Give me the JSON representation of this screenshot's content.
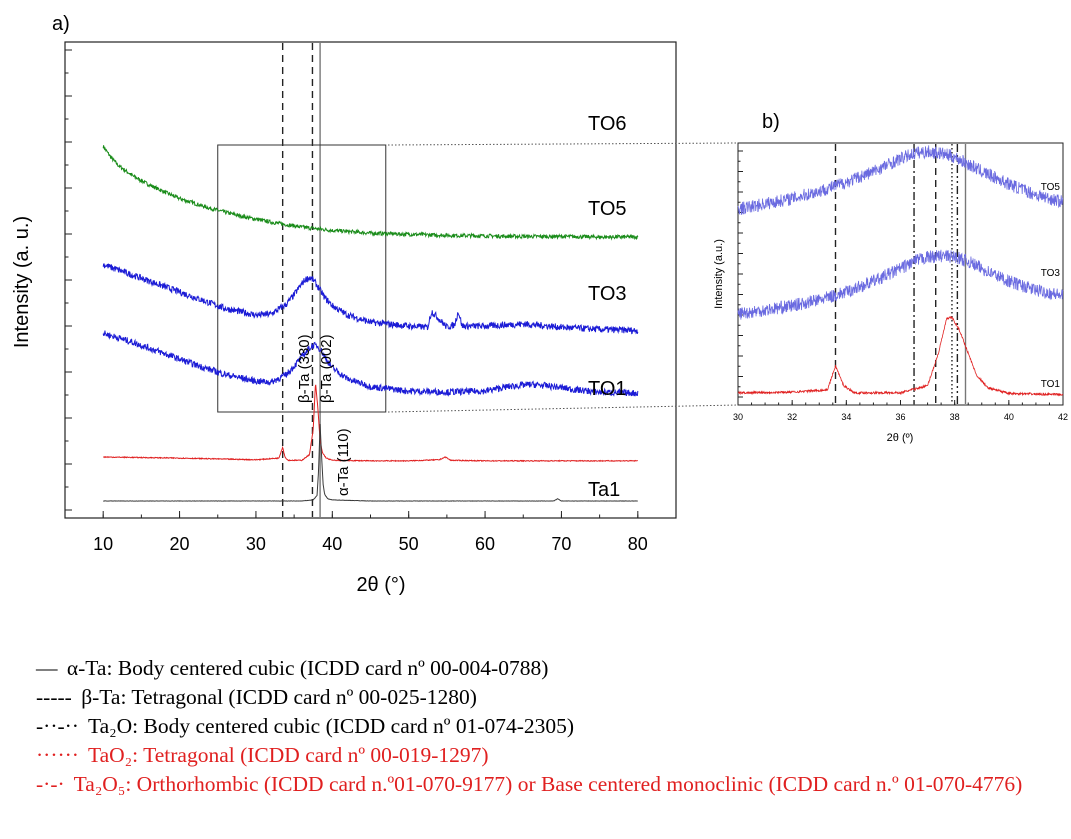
{
  "chart_data": [
    {
      "panel": "a)",
      "type": "line",
      "xlabel": "2θ (°)",
      "ylabel": "Intensity (a. u.)",
      "xlim": [
        5,
        85
      ],
      "xticks": [
        10,
        20,
        30,
        40,
        50,
        60,
        70,
        80
      ],
      "y_tick_labels": "none",
      "series": [
        {
          "name": "TO6",
          "color": "#1a8c1a",
          "x": [
            10,
            11,
            12,
            14,
            16,
            18,
            20,
            24,
            28,
            32,
            36,
            40,
            45,
            50,
            55,
            60,
            65,
            70,
            75,
            80
          ],
          "y": [
            6.45,
            6.25,
            6.1,
            5.9,
            5.75,
            5.62,
            5.5,
            5.32,
            5.18,
            5.07,
            4.98,
            4.92,
            4.87,
            4.85,
            4.83,
            4.82,
            4.81,
            4.81,
            4.8,
            4.8
          ]
        },
        {
          "name": "TO5",
          "color": "#1c1cd6",
          "x": [
            10,
            14,
            18,
            22,
            26,
            30,
            32,
            34,
            35,
            36,
            36.5,
            37,
            37.5,
            38,
            39,
            40,
            42,
            45,
            50,
            52.5,
            53,
            55,
            56,
            56.5,
            57,
            60,
            65,
            70,
            75,
            80
          ],
          "y": [
            4.3,
            4.1,
            3.9,
            3.7,
            3.5,
            3.38,
            3.4,
            3.58,
            3.75,
            3.95,
            4.03,
            4.06,
            4.02,
            3.92,
            3.7,
            3.55,
            3.38,
            3.25,
            3.18,
            3.16,
            3.45,
            3.16,
            3.2,
            3.45,
            3.18,
            3.18,
            3.22,
            3.16,
            3.12,
            3.1
          ]
        },
        {
          "name": "TO3",
          "color": "#1c1cd6",
          "x": [
            10,
            14,
            18,
            22,
            26,
            30,
            32,
            34,
            35,
            36,
            37,
            37.5,
            38,
            38.5,
            39,
            40,
            42,
            45,
            50,
            55,
            60,
            63,
            66,
            69,
            72,
            75,
            80
          ],
          "y": [
            3.05,
            2.88,
            2.68,
            2.48,
            2.3,
            2.18,
            2.16,
            2.3,
            2.45,
            2.62,
            2.78,
            2.83,
            2.82,
            2.75,
            2.62,
            2.42,
            2.22,
            2.08,
            2.0,
            1.98,
            2.0,
            2.08,
            2.12,
            2.08,
            2.02,
            1.98,
            1.96
          ]
        },
        {
          "name": "TO1",
          "color": "#e02020",
          "x": [
            10,
            20,
            30,
            33,
            33.5,
            33.8,
            34.2,
            36,
            37,
            37.5,
            37.8,
            38.1,
            38.4,
            38.7,
            39.2,
            40,
            45,
            50,
            54,
            54.8,
            55.5,
            60,
            70,
            80
          ],
          "y": [
            0.8,
            0.78,
            0.75,
            0.78,
            0.98,
            0.8,
            0.74,
            0.74,
            0.84,
            1.3,
            2.15,
            1.7,
            1.1,
            0.88,
            0.78,
            0.74,
            0.73,
            0.73,
            0.75,
            0.8,
            0.74,
            0.73,
            0.73,
            0.73
          ]
        },
        {
          "name": "Ta1",
          "color": "#3a3a3a",
          "x": [
            10,
            20,
            30,
            36,
            37.5,
            38,
            38.2,
            38.4,
            38.6,
            38.8,
            39,
            39.4,
            40,
            45,
            60,
            69,
            69.5,
            70,
            80
          ],
          "y": [
            0.0,
            0.0,
            0.0,
            0.0,
            0.02,
            0.1,
            0.55,
            1.4,
            0.8,
            0.3,
            0.12,
            0.04,
            0.02,
            0.0,
            0.0,
            0.0,
            0.04,
            0.0,
            0.0
          ]
        }
      ],
      "reference_lines": [
        {
          "x": 33.5,
          "style": "dashed"
        },
        {
          "x": 37.4,
          "style": "dashed"
        },
        {
          "x": 38.4,
          "style": "solid"
        }
      ],
      "peak_labels": [
        "β-Ta (002)",
        "β-Ta (330)",
        "α-Ta (110)"
      ],
      "inset_box": {
        "x": [
          25,
          47
        ]
      }
    },
    {
      "panel": "b)",
      "type": "line",
      "xlabel": "2θ (º)",
      "ylabel": "Intensity (a.u.)",
      "xlim": [
        30,
        42
      ],
      "xticks": [
        30,
        32,
        34,
        36,
        38,
        40,
        42
      ],
      "series": [
        {
          "name": "TO5",
          "color": "#6a6ae0",
          "x": [
            30,
            31,
            32,
            33,
            34,
            35,
            36,
            36.5,
            37,
            37.5,
            38,
            38.5,
            39,
            40,
            41,
            42
          ],
          "y": [
            5.3,
            5.45,
            5.6,
            5.8,
            6.05,
            6.35,
            6.7,
            6.85,
            6.9,
            6.85,
            6.75,
            6.55,
            6.35,
            6.0,
            5.7,
            5.5
          ]
        },
        {
          "name": "TO3",
          "color": "#6a6ae0",
          "x": [
            30,
            31,
            32,
            33,
            34,
            35,
            36,
            36.5,
            37,
            37.5,
            38,
            38.5,
            39,
            40,
            41,
            42
          ],
          "y": [
            2.4,
            2.5,
            2.62,
            2.78,
            3.0,
            3.3,
            3.65,
            3.85,
            3.97,
            4.0,
            3.98,
            3.85,
            3.65,
            3.3,
            3.05,
            2.9
          ]
        },
        {
          "name": "TO1",
          "color": "#e02020",
          "x": [
            30,
            32,
            33.3,
            33.6,
            33.9,
            34.3,
            36,
            37,
            37.4,
            37.7,
            37.9,
            38.2,
            38.5,
            38.8,
            39.2,
            40,
            42
          ],
          "y": [
            0.2,
            0.22,
            0.28,
            0.95,
            0.4,
            0.2,
            0.2,
            0.4,
            1.3,
            2.25,
            2.3,
            1.9,
            1.3,
            0.7,
            0.35,
            0.18,
            0.15
          ]
        }
      ],
      "reference_lines": [
        {
          "x": 33.6,
          "style": "dashed"
        },
        {
          "x": 36.5,
          "style": "dash-dot"
        },
        {
          "x": 37.3,
          "style": "dashed"
        },
        {
          "x": 37.9,
          "style": "dotted"
        },
        {
          "x": 38.1,
          "style": "dash-dot-dot"
        },
        {
          "x": 38.4,
          "style": "solid"
        }
      ]
    }
  ],
  "legend": {
    "items": [
      {
        "symbol": "—",
        "color": "#000000",
        "text": "α-Ta: Body centered cubic (ICDD card nº 00-004-0788)"
      },
      {
        "symbol": "-----",
        "color": "#000000",
        "text": "β-Ta: Tetragonal (ICDD card nº 00-025-1280)"
      },
      {
        "symbol": "-··-··",
        "color": "#000000",
        "text": "Ta₂O: Body centered cubic (ICDD card nº 01-074-2305)"
      },
      {
        "symbol": "······",
        "color": "#e02020",
        "text": "TaO₂: Tetragonal (ICDD card nº 00-019-1297)"
      },
      {
        "symbol": "-·-·",
        "color": "#e02020",
        "text": "Ta₂O₅: Orthorhombic (ICDD card n.º01-070-9177) or Base centered monoclinic (ICDD card n.º 01-070-4776)"
      }
    ]
  }
}
